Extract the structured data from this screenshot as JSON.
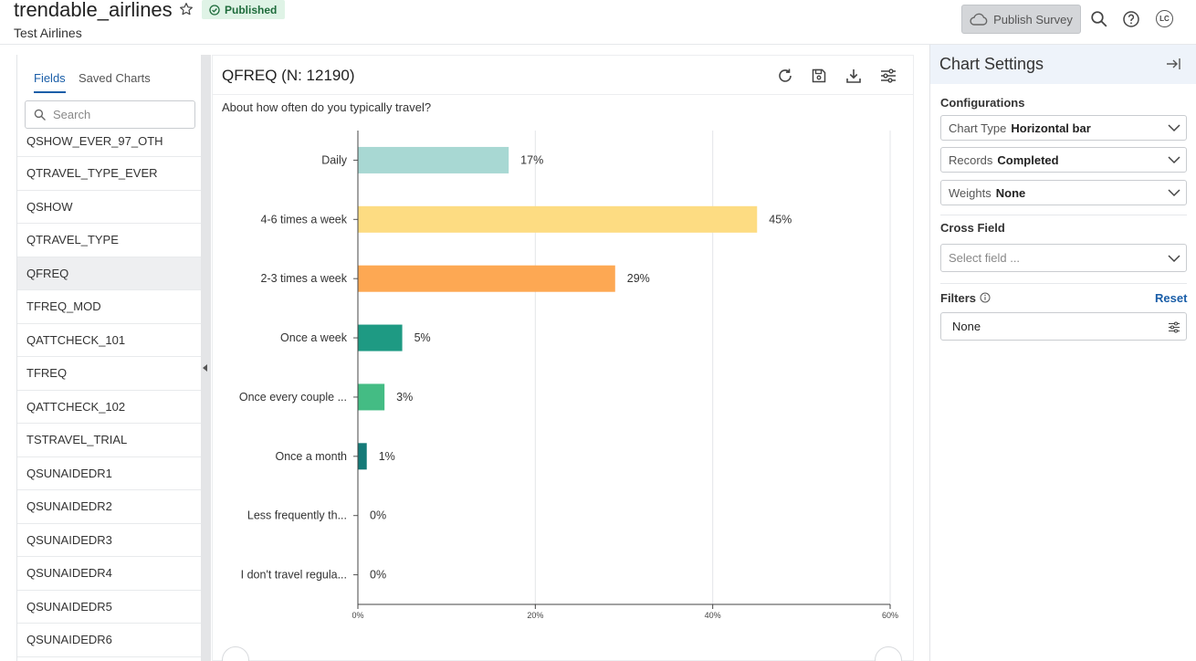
{
  "header": {
    "title": "trendable_airlines",
    "status_badge": "Published",
    "subtitle": "Test Airlines",
    "publish_label": "Publish Survey",
    "avatar_initials": "LC"
  },
  "left_panel": {
    "tabs": [
      {
        "label": "Fields",
        "active": true
      },
      {
        "label": "Saved Charts",
        "active": false
      }
    ],
    "search_placeholder": "Search",
    "fields": [
      "QSHOW_EVER_97_OTH",
      "QTRAVEL_TYPE_EVER",
      "QSHOW",
      "QTRAVEL_TYPE",
      "QFREQ",
      "TFREQ_MOD",
      "QATTCHECK_101",
      "TFREQ",
      "QATTCHECK_102",
      "TSTRAVEL_TRIAL",
      "QSUNAIDEDR1",
      "QSUNAIDEDR2",
      "QSUNAIDEDR3",
      "QSUNAIDEDR4",
      "QSUNAIDEDR5",
      "QSUNAIDEDR6"
    ],
    "selected_field": "QFREQ"
  },
  "main": {
    "chart_title": "QFREQ (N: 12190)",
    "question": "About how often do you typically travel?"
  },
  "chart_data": {
    "type": "bar",
    "orientation": "horizontal",
    "categories": [
      "Daily",
      "4-6 times a week",
      "2-3 times a week",
      "Once a week",
      "Once every couple ...",
      "Once a month",
      "Less frequently th...",
      "I don't travel regula..."
    ],
    "values": [
      17,
      45,
      29,
      5,
      3,
      1,
      0,
      0
    ],
    "value_labels": [
      "17%",
      "45%",
      "29%",
      "5%",
      "3%",
      "1%",
      "0%",
      "0%"
    ],
    "colors": [
      "#a8d8d3",
      "#fddc82",
      "#fda853",
      "#1e9a83",
      "#44bc84",
      "#157a78",
      "#157a78",
      "#157a78"
    ],
    "xlim": [
      0,
      60
    ],
    "xticks": [
      0,
      20,
      40,
      60
    ],
    "xtick_labels": [
      "0%",
      "20%",
      "40%",
      "60%"
    ],
    "grid": "vertical"
  },
  "right_panel": {
    "title": "Chart Settings",
    "configurations_label": "Configurations",
    "chart_type": {
      "label": "Chart Type",
      "value": "Horizontal bar"
    },
    "records": {
      "label": "Records",
      "value": "Completed"
    },
    "weights": {
      "label": "Weights",
      "value": "None"
    },
    "cross_field_label": "Cross Field",
    "cross_field_placeholder": "Select field ...",
    "filters_label": "Filters",
    "reset_label": "Reset",
    "filters_value": "None"
  }
}
